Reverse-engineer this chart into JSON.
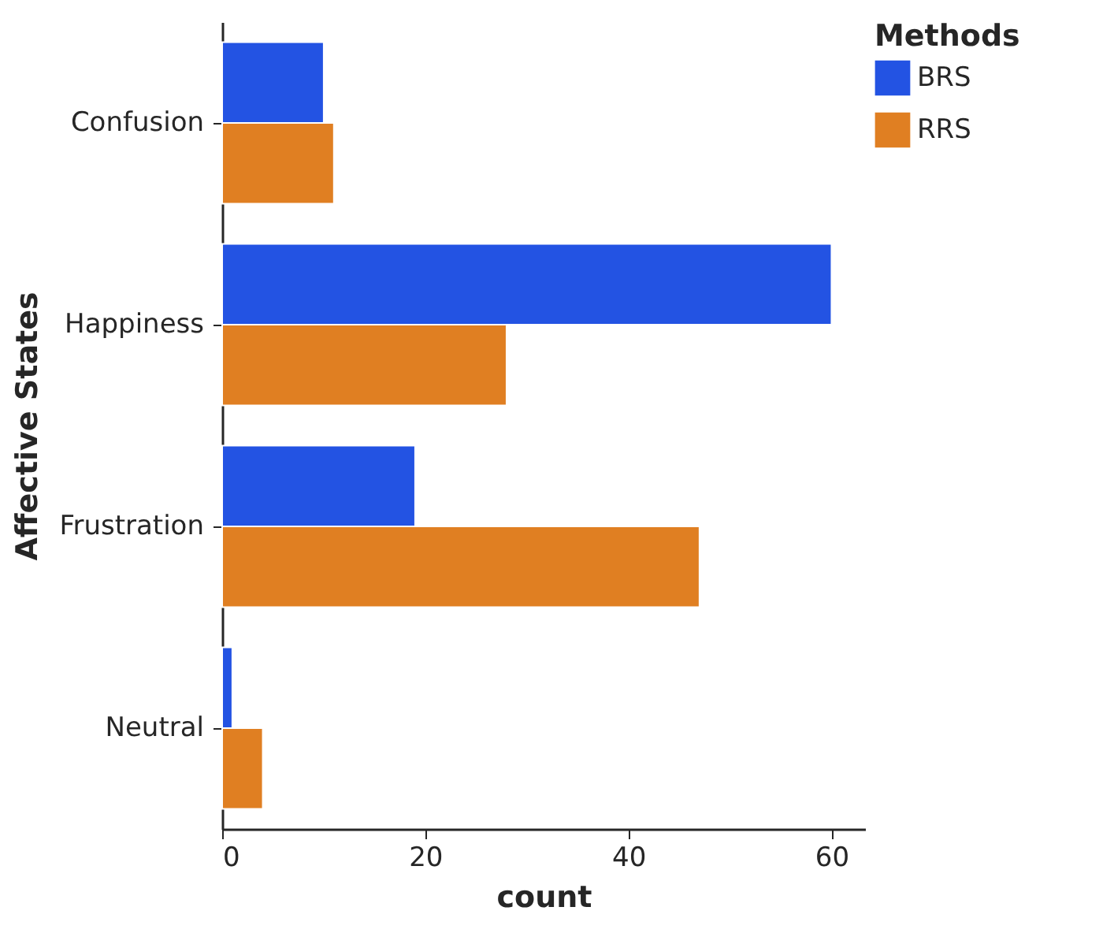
{
  "chart_data": {
    "type": "bar",
    "orientation": "horizontal",
    "xlabel": "count",
    "ylabel": "Affective States",
    "legend_title": "Methods",
    "categories": [
      "Confusion",
      "Happiness",
      "Frustration",
      "Neutral"
    ],
    "series": [
      {
        "name": "BRS",
        "color": "#2353e3",
        "values": [
          10,
          60,
          19,
          1
        ]
      },
      {
        "name": "RRS",
        "color": "#e07f22",
        "values": [
          11,
          28,
          47,
          4
        ]
      }
    ],
    "xlim": [
      0,
      63.3
    ],
    "xticks": [
      0,
      20,
      40,
      60
    ],
    "grid": false,
    "legend": "right"
  }
}
